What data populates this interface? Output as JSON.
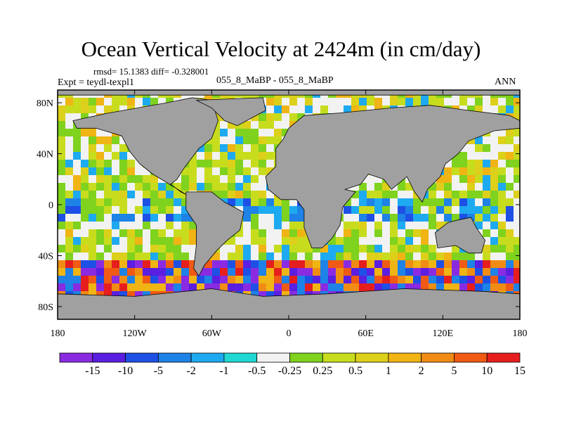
{
  "title": "Ocean Vertical Velocity at 2424m (in cm/day)",
  "stats_text": "rmsd= 15.1383 diff= -0.328001",
  "experiment_text": "Expt = teydl-texpl1",
  "difference_label": "055_8_MaBP - 055_8_MaBP",
  "period_label": "ANN",
  "axes": {
    "lat_ticks": [
      "80N",
      "40N",
      "0",
      "40S",
      "80S"
    ],
    "lon_ticks": [
      "180",
      "120W",
      "60W",
      "0",
      "60E",
      "120E",
      "180"
    ]
  },
  "colorbar": {
    "colors": [
      "#8a2be2",
      "#5a1fe0",
      "#1e50e6",
      "#1e82e6",
      "#1eaaf0",
      "#20d7d2",
      "#f2f2f2",
      "#7fd21e",
      "#c8dc1e",
      "#ddd01a",
      "#f0b414",
      "#f08c14",
      "#f05a14",
      "#e61e1e"
    ],
    "labels": [
      "-15",
      "-10",
      "-5",
      "-2",
      "-1",
      "-0.5",
      "-0.25",
      "0.25",
      "0.5",
      "1",
      "2",
      "5",
      "10",
      "15"
    ]
  },
  "land_color": "#a0a0a0"
}
